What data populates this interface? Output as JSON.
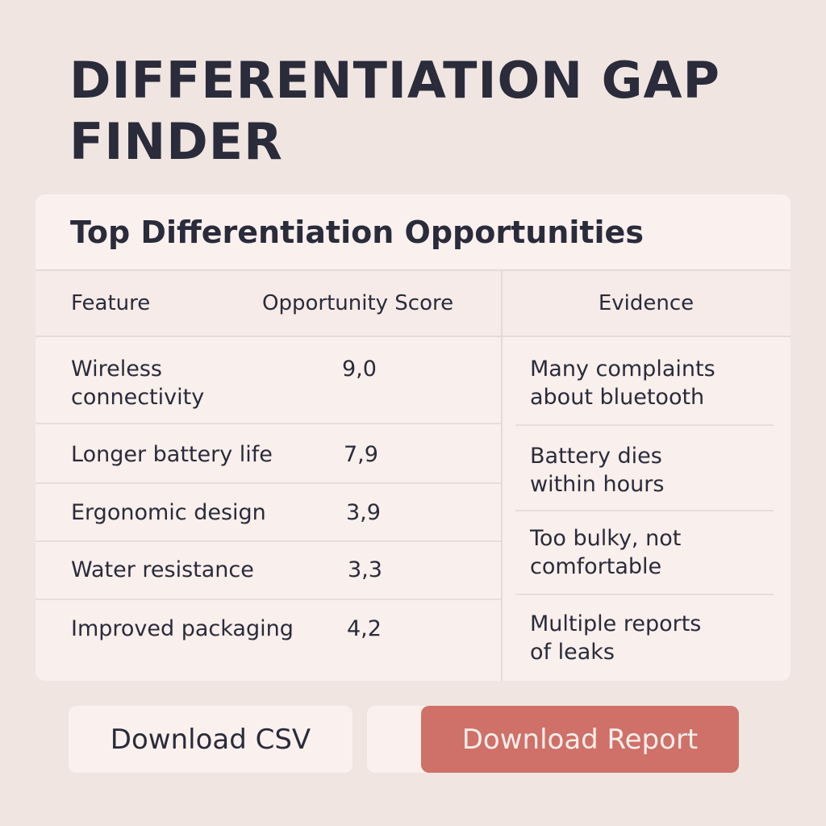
{
  "page": {
    "title": "DIFFERENTIATION GAP FINDER"
  },
  "card": {
    "title": "Top Differentiation Opportunities",
    "columns": {
      "feature": "Feature",
      "score": "Opportunity Score",
      "evidence": "Evidence"
    },
    "features": [
      {
        "name": "Wireless connectivity",
        "score": "9,0"
      },
      {
        "name": "Longer battery life",
        "score": "7,9"
      },
      {
        "name": "Ergonomic design",
        "score": "3,9"
      },
      {
        "name": "Water resistance",
        "score": "3,3"
      },
      {
        "name": "Improved packaging",
        "score": "4,2"
      }
    ],
    "evidence": [
      "Many complaints about bluetooth",
      "Battery dies within hours",
      "Too bulky, not comfortable",
      "Multiple reports of leaks"
    ]
  },
  "actions": {
    "download_csv": "Download CSV",
    "download_report": "Download Report"
  },
  "colors": {
    "background": "#f0e5e1",
    "card": "#f9efec",
    "accent": "#cf7169",
    "text": "#2a2b3b"
  }
}
